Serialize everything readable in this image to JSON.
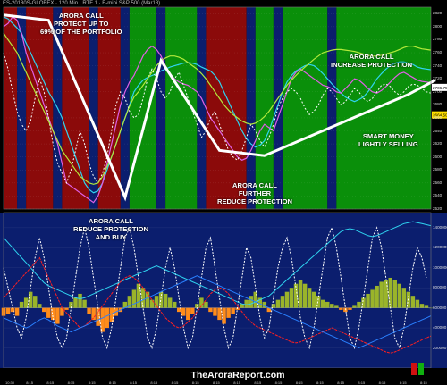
{
  "header": {
    "title": "ES-20180S-GLOBEX · 120 Min · RTF 1 · E-mini S&P 500 (Mar18)"
  },
  "annotations": [
    {
      "id": "a1",
      "text": "ARORA CALL\nPROTECT UP TO\n69% OF THE PORTFOLIO"
    },
    {
      "id": "a2",
      "text": "ARORA CALL\nINCREASE PROTECTION"
    },
    {
      "id": "a3",
      "text": "SMART MONEY\nLIGHTLY SELLING"
    },
    {
      "id": "a4",
      "text": "ARORA CALL\nFURTHER\nREDUCE PROTECTION"
    },
    {
      "id": "a5",
      "text": "ARORA CALL\nREDUCE PROTECTION\nAND BUY"
    }
  ],
  "watermark": "TheAroraReport.com",
  "colors": {
    "bg": "#000000",
    "red": "#8b0a0a",
    "green": "#0a8f0a",
    "navy": "#0b1e6e",
    "line_white": "#ffffff",
    "line_cyan": "#2fd4f0",
    "line_magenta": "#e060e6",
    "line_lime": "#b4ea3c",
    "line_red": "#ff2020",
    "hist_olive": "#9ab42a",
    "hist_orange": "#ff8c1a",
    "indicator_blue": "#2a80ff"
  },
  "chart_data": {
    "type": "line",
    "title": "ES-20180S-GLOBEX · 120 Min · RTF 1 · E-mini S&P 500 (Mar18)",
    "yticks": [
      2820,
      2800,
      2780,
      2760,
      2740,
      2720,
      2700,
      2680,
      2660,
      2640,
      2620,
      2600,
      2580,
      2560,
      2540,
      2520
    ],
    "ylim": [
      2520,
      2830
    ],
    "lower_yticks": [
      "1400000",
      "1200000",
      "1000000",
      "800000",
      "600000",
      "400000",
      "200000"
    ],
    "lower_ylim": [
      0,
      1550000
    ],
    "xtick_labels": [
      "10:30",
      "8:15",
      "8:15",
      "8:15",
      "8:15",
      "8:15",
      "8:15",
      "8:15",
      "8:15",
      "8:15",
      "8:15",
      "8:15",
      "8:15",
      "8:15",
      "8:15",
      "8:15",
      "8:15",
      "8:15",
      "8:15",
      "8:15",
      "8:15"
    ],
    "badges": [
      {
        "value": "2706.75",
        "color": "#ffffff"
      },
      {
        "value": "2664.50",
        "color": "#ffe000"
      }
    ],
    "background_bands": [
      {
        "start": 0,
        "end": 3,
        "color": "red"
      },
      {
        "start": 3,
        "end": 5,
        "color": "navy"
      },
      {
        "start": 5,
        "end": 11,
        "color": "red"
      },
      {
        "start": 11,
        "end": 13,
        "color": "navy"
      },
      {
        "start": 13,
        "end": 19,
        "color": "red"
      },
      {
        "start": 19,
        "end": 21,
        "color": "navy"
      },
      {
        "start": 21,
        "end": 26,
        "color": "red"
      },
      {
        "start": 26,
        "end": 28,
        "color": "navy"
      },
      {
        "start": 28,
        "end": 34,
        "color": "green"
      },
      {
        "start": 34,
        "end": 36,
        "color": "navy"
      },
      {
        "start": 36,
        "end": 43,
        "color": "green"
      },
      {
        "start": 43,
        "end": 45,
        "color": "navy"
      },
      {
        "start": 45,
        "end": 54,
        "color": "red"
      },
      {
        "start": 54,
        "end": 56,
        "color": "navy"
      },
      {
        "start": 56,
        "end": 60,
        "color": "green"
      },
      {
        "start": 60,
        "end": 62,
        "color": "navy"
      },
      {
        "start": 62,
        "end": 72,
        "color": "green"
      },
      {
        "start": 72,
        "end": 74,
        "color": "navy"
      },
      {
        "start": 74,
        "end": 96,
        "color": "green"
      }
    ],
    "arora_trend": {
      "x": [
        0,
        10,
        27,
        35,
        48,
        58,
        90,
        96
      ],
      "y": [
        2818,
        2810,
        2538,
        2748,
        2610,
        2602,
        2696,
        2718
      ]
    },
    "series": [
      {
        "name": "",
        "color": "cyan",
        "values": [
          2815,
          2812,
          2805,
          2798,
          2790,
          2775,
          2760,
          2745,
          2730,
          2715,
          2700,
          2688,
          2675,
          2660,
          2640,
          2620,
          2600,
          2580,
          2560,
          2550,
          2545,
          2548,
          2560,
          2580,
          2600,
          2620,
          2640,
          2660,
          2680,
          2700,
          2710,
          2718,
          2722,
          2725,
          2728,
          2732,
          2735,
          2738,
          2740,
          2742,
          2744,
          2745,
          2744,
          2742,
          2738,
          2735,
          2732,
          2725,
          2715,
          2700,
          2685,
          2670,
          2655,
          2640,
          2628,
          2620,
          2615,
          2618,
          2625,
          2640,
          2660,
          2680,
          2700,
          2715,
          2725,
          2732,
          2736,
          2740,
          2742,
          2740,
          2735,
          2728,
          2720,
          2712,
          2705,
          2698,
          2692,
          2688,
          2685,
          2688,
          2692,
          2700,
          2710,
          2720,
          2728,
          2735,
          2740,
          2744,
          2746,
          2746,
          2744,
          2742,
          2738,
          2736,
          2735,
          2734
        ]
      },
      {
        "name": "",
        "color": "magenta",
        "values": [
          2800,
          2805,
          2815,
          2810,
          2790,
          2760,
          2740,
          2720,
          2700,
          2680,
          2660,
          2640,
          2620,
          2590,
          2560,
          2555,
          2550,
          2545,
          2540,
          2535,
          2530,
          2540,
          2560,
          2590,
          2620,
          2650,
          2680,
          2700,
          2715,
          2725,
          2740,
          2755,
          2765,
          2770,
          2765,
          2755,
          2740,
          2728,
          2720,
          2715,
          2712,
          2710,
          2705,
          2700,
          2690,
          2675,
          2660,
          2650,
          2640,
          2630,
          2620,
          2610,
          2600,
          2595,
          2598,
          2610,
          2625,
          2640,
          2650,
          2645,
          2640,
          2660,
          2680,
          2700,
          2720,
          2730,
          2735,
          2730,
          2725,
          2720,
          2715,
          2710,
          2708,
          2705,
          2700,
          2698,
          2705,
          2712,
          2720,
          2718,
          2712,
          2705,
          2700,
          2698,
          2702,
          2708,
          2715,
          2722,
          2728,
          2730,
          2726,
          2722,
          2718,
          2716,
          2715,
          2714
        ]
      },
      {
        "name": "",
        "color": "white-dotted",
        "values": [
          2760,
          2735,
          2700,
          2670,
          2650,
          2640,
          2655,
          2690,
          2720,
          2700,
          2660,
          2620,
          2590,
          2575,
          2560,
          2580,
          2610,
          2640,
          2620,
          2590,
          2570,
          2560,
          2575,
          2600,
          2640,
          2680,
          2700,
          2690,
          2670,
          2660,
          2665,
          2690,
          2720,
          2735,
          2720,
          2700,
          2690,
          2700,
          2720,
          2730,
          2710,
          2690,
          2670,
          2650,
          2630,
          2640,
          2660,
          2670,
          2650,
          2630,
          2610,
          2600,
          2595,
          2610,
          2630,
          2650,
          2640,
          2625,
          2615,
          2630,
          2650,
          2675,
          2690,
          2700,
          2705,
          2700,
          2690,
          2675,
          2665,
          2670,
          2680,
          2695,
          2705,
          2700,
          2690,
          2680,
          2685,
          2695,
          2705,
          2700,
          2690,
          2685,
          2690,
          2700,
          2710,
          2712,
          2708,
          2700,
          2695,
          2700,
          2708,
          2712,
          2710,
          2705,
          2700,
          2698
        ]
      },
      {
        "name": "",
        "color": "lime",
        "values": [
          2790,
          2780,
          2770,
          2760,
          2745,
          2730,
          2715,
          2700,
          2685,
          2670,
          2655,
          2640,
          2625,
          2610,
          2600,
          2590,
          2580,
          2570,
          2565,
          2560,
          2558,
          2560,
          2570,
          2585,
          2600,
          2620,
          2640,
          2660,
          2678,
          2692,
          2700,
          2710,
          2720,
          2730,
          2740,
          2748,
          2752,
          2755,
          2755,
          2753,
          2750,
          2745,
          2740,
          2735,
          2728,
          2720,
          2710,
          2700,
          2690,
          2680,
          2672,
          2665,
          2660,
          2655,
          2652,
          2650,
          2652,
          2656,
          2662,
          2670,
          2680,
          2690,
          2700,
          2710,
          2718,
          2725,
          2732,
          2738,
          2744,
          2750,
          2755,
          2760,
          2762,
          2764,
          2765,
          2765,
          2764,
          2763,
          2762,
          2760,
          2758,
          2756,
          2755,
          2755,
          2756,
          2758,
          2760,
          2762,
          2765,
          2768,
          2770,
          2770,
          2768,
          2766,
          2765,
          2764
        ]
      }
    ],
    "lower": {
      "histogram": [
        -4,
        -3,
        -2,
        -4,
        3,
        5,
        8,
        6,
        2,
        -2,
        -5,
        -6,
        -8,
        -4,
        -1,
        3,
        5,
        7,
        4,
        -3,
        -6,
        -9,
        -12,
        -10,
        -7,
        -4,
        -2,
        3,
        6,
        9,
        12,
        10,
        8,
        4,
        6,
        8,
        7,
        5,
        3,
        -2,
        -4,
        -6,
        -3,
        2,
        5,
        3,
        -2,
        -4,
        -6,
        -8,
        -5,
        -3,
        -1,
        2,
        4,
        6,
        8,
        5,
        3,
        -2,
        2,
        4,
        6,
        8,
        10,
        12,
        14,
        12,
        10,
        8,
        6,
        4,
        3,
        2,
        1,
        -1,
        -2,
        -1,
        1,
        3,
        5,
        7,
        9,
        11,
        13,
        14,
        15,
        14,
        12,
        10,
        8,
        6,
        4,
        2,
        1,
        0
      ],
      "histogram_zero": 600000,
      "histogram_unit": 20000,
      "lines": [
        {
          "color": "white-dotted",
          "values": [
            1000000,
            800000,
            600000,
            400000,
            300000,
            500000,
            800000,
            1100000,
            1300000,
            1100000,
            800000,
            500000,
            300000,
            200000,
            300000,
            600000,
            900000,
            1200000,
            1400000,
            1200000,
            900000,
            600000,
            300000,
            200000,
            400000,
            700000,
            1000000,
            1300000,
            1400000,
            1200000,
            900000,
            600000,
            300000,
            200000,
            400000,
            700000,
            1000000,
            1200000,
            1000000,
            700000,
            400000,
            200000,
            300000,
            600000,
            900000,
            1200000,
            1300000,
            1000000,
            700000,
            400000,
            200000,
            300000,
            600000,
            900000,
            1200000,
            1100000,
            800000,
            500000,
            300000,
            400000,
            700000,
            1000000,
            1200000,
            1300000,
            1100000,
            800000,
            500000,
            300000,
            200000,
            400000,
            700000,
            1000000,
            1300000,
            1400000,
            1200000,
            900000,
            600000,
            300000,
            200000,
            400000,
            700000,
            1000000,
            1300000,
            1400000,
            1200000,
            900000,
            600000,
            300000,
            200000,
            400000,
            700000,
            1000000,
            1200000,
            1100000,
            900000
          ]
        },
        {
          "color": "cyan",
          "values": [
            1300000,
            1250000,
            1200000,
            1150000,
            1100000,
            1050000,
            1000000,
            950000,
            900000,
            850000,
            820000,
            800000,
            780000,
            760000,
            740000,
            720000,
            700000,
            690000,
            700000,
            720000,
            740000,
            760000,
            780000,
            800000,
            820000,
            840000,
            860000,
            880000,
            900000,
            920000,
            940000,
            960000,
            980000,
            1000000,
            1020000,
            1000000,
            980000,
            960000,
            940000,
            920000,
            900000,
            880000,
            860000,
            840000,
            820000,
            800000,
            780000,
            760000,
            740000,
            720000,
            700000,
            680000,
            660000,
            640000,
            630000,
            640000,
            660000,
            680000,
            700000,
            720000,
            760000,
            800000,
            840000,
            880000,
            920000,
            960000,
            1000000,
            1040000,
            1080000,
            1120000,
            1160000,
            1200000,
            1240000,
            1280000,
            1320000,
            1360000,
            1380000,
            1390000,
            1380000,
            1360000,
            1340000,
            1320000,
            1310000,
            1320000,
            1340000,
            1360000,
            1380000,
            1400000,
            1420000,
            1440000,
            1450000,
            1460000,
            1450000,
            1440000,
            1430000,
            1420000
          ]
        },
        {
          "color": "red",
          "values": [
            700000,
            750000,
            800000,
            850000,
            900000,
            950000,
            1000000,
            1050000,
            1100000,
            1000000,
            900000,
            800000,
            700000,
            600000,
            550000,
            500000,
            450000,
            400000,
            420000,
            460000,
            500000,
            560000,
            620000,
            680000,
            740000,
            800000,
            860000,
            900000,
            920000,
            900000,
            860000,
            800000,
            740000,
            680000,
            620000,
            560000,
            500000,
            460000,
            420000,
            400000,
            420000,
            460000,
            500000,
            560000,
            620000,
            680000,
            740000,
            780000,
            800000,
            780000,
            740000,
            680000,
            620000,
            560000,
            500000,
            460000,
            420000,
            400000,
            380000,
            360000,
            340000,
            320000,
            300000,
            280000,
            260000,
            250000,
            260000,
            280000,
            300000,
            320000,
            340000,
            360000,
            380000,
            400000,
            380000,
            360000,
            340000,
            320000,
            300000,
            280000,
            260000,
            240000,
            220000,
            200000,
            180000,
            160000,
            150000,
            160000,
            180000,
            200000,
            220000,
            240000,
            260000,
            280000,
            300000,
            320000
          ]
        },
        {
          "color": "blue",
          "values": [
            500000,
            480000,
            460000,
            440000,
            420000,
            400000,
            420000,
            450000,
            480000,
            500000,
            480000,
            450000,
            420000,
            400000,
            380000,
            360000,
            380000,
            400000,
            420000,
            440000,
            460000,
            480000,
            500000,
            520000,
            540000,
            560000,
            580000,
            600000,
            620000,
            640000,
            660000,
            680000,
            700000,
            720000,
            740000,
            760000,
            780000,
            800000,
            820000,
            840000,
            860000,
            880000,
            900000,
            920000,
            900000,
            880000,
            860000,
            840000,
            820000,
            800000,
            780000,
            760000,
            740000,
            720000,
            700000,
            680000,
            660000,
            640000,
            620000,
            600000,
            580000,
            560000,
            540000,
            520000,
            500000,
            480000,
            460000,
            440000,
            420000,
            400000,
            380000,
            360000,
            340000,
            320000,
            300000,
            280000,
            260000,
            240000,
            220000,
            200000,
            220000,
            240000,
            260000,
            280000,
            300000,
            320000,
            340000,
            360000,
            380000,
            400000,
            420000,
            440000,
            460000,
            480000,
            500000,
            520000
          ]
        }
      ]
    }
  }
}
